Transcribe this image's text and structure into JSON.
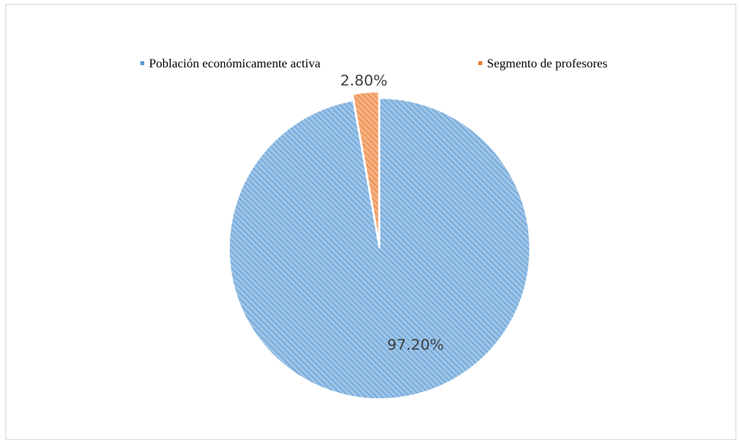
{
  "chart_data": {
    "type": "pie",
    "categories": [
      "Población económicamente activa",
      "Segmento de profesores"
    ],
    "values": [
      97.2,
      2.8
    ],
    "data_labels": [
      "97.20%",
      "2.80%"
    ],
    "colors": [
      "#9dc3e6",
      "#f4b183"
    ],
    "hatch_colors": [
      "#5b9bd5",
      "#ed7d31"
    ],
    "exploded": [
      false,
      true
    ],
    "legend_position": "top",
    "start_angle_deg": 0,
    "direction": "clockwise"
  }
}
